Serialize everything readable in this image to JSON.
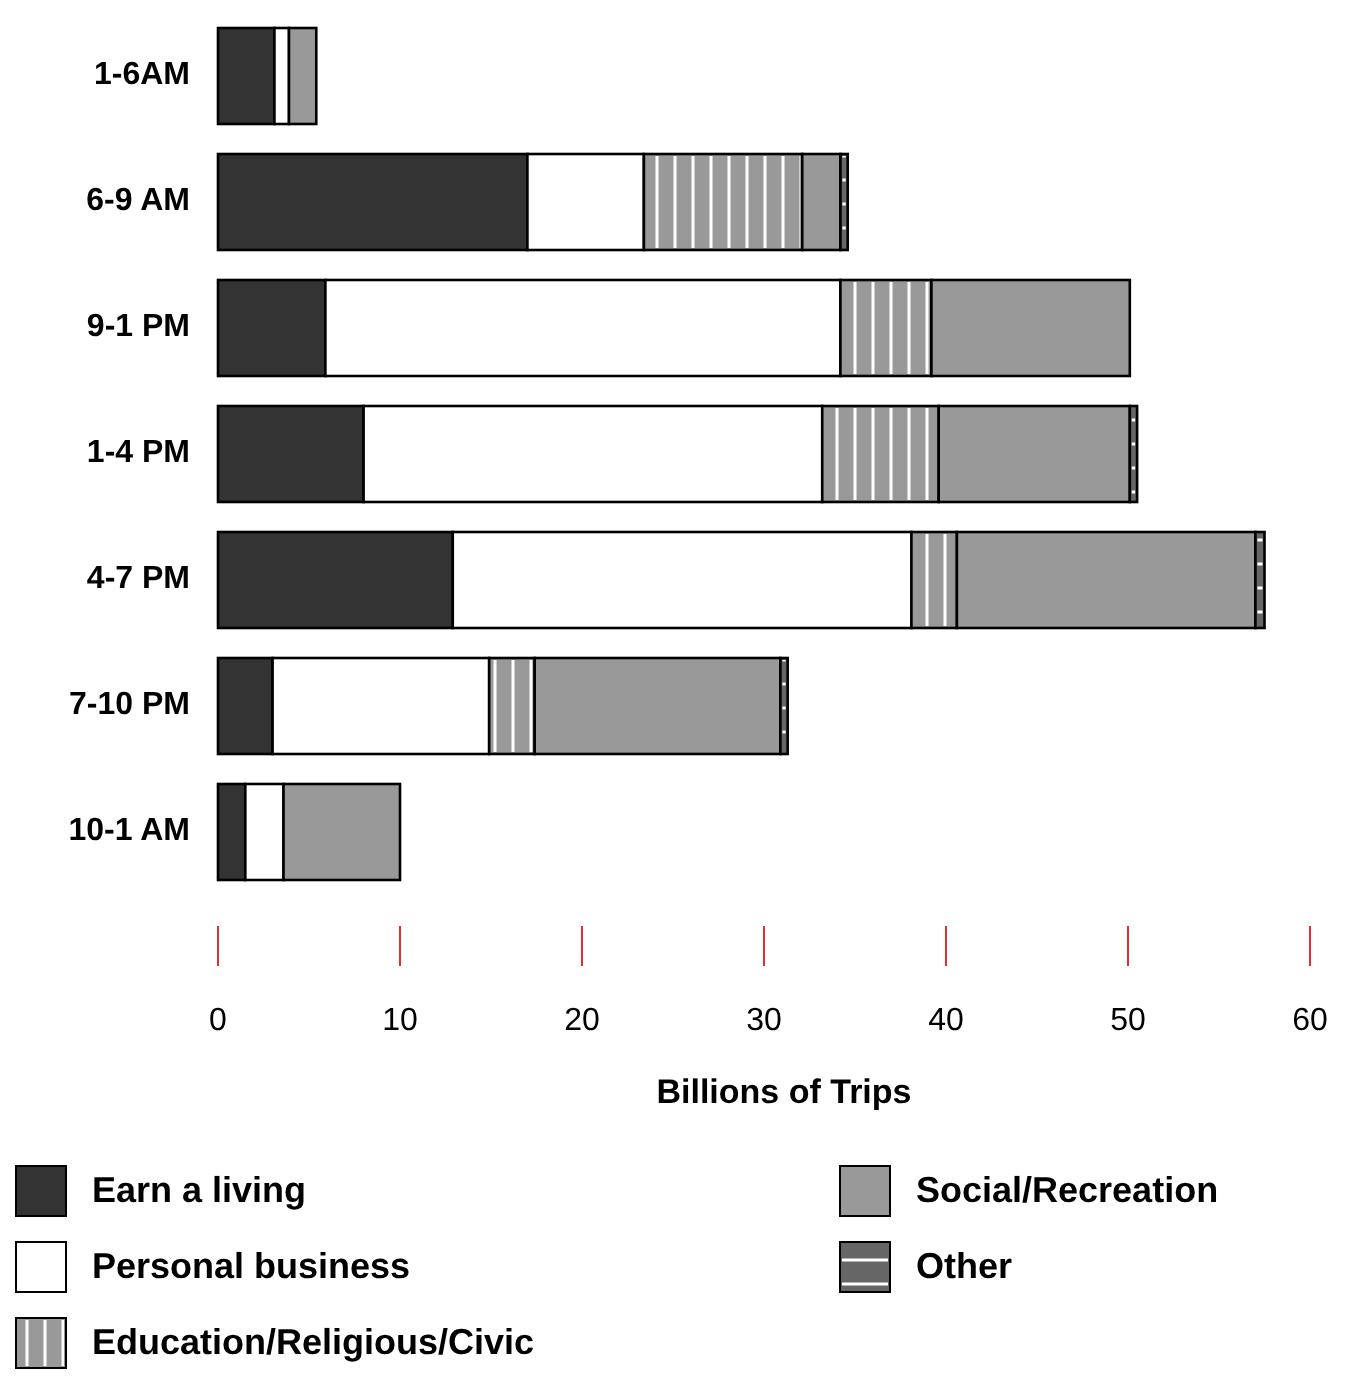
{
  "chart_data": {
    "type": "bar",
    "orientation": "horizontal",
    "stacked": true,
    "xlabel": "Billions of Trips",
    "categories": [
      "1-6AM",
      "6-9 AM",
      "9-1 PM",
      "1-4 PM",
      "4-7 PM",
      "7-10 PM",
      "10-1 AM"
    ],
    "series": [
      {
        "name": "Earn a living",
        "color": "#333333",
        "values": [
          3.1,
          17.0,
          5.9,
          8.0,
          12.9,
          3.0,
          1.5
        ]
      },
      {
        "name": "Personal business",
        "color": "#ffffff",
        "values": [
          0.8,
          6.4,
          28.3,
          25.2,
          25.2,
          11.9,
          2.1
        ]
      },
      {
        "name": "Education/Religious/Civic",
        "color": "#999999",
        "values": [
          0,
          8.7,
          5.0,
          6.4,
          2.5,
          2.5,
          0
        ]
      },
      {
        "name": "Social/Recreation",
        "color": "#999999",
        "values": [
          1.5,
          2.1,
          10.9,
          10.5,
          16.4,
          13.5,
          6.4
        ]
      },
      {
        "name": "Other",
        "color": "#666666",
        "values": [
          0,
          0.4,
          0,
          0.4,
          0.5,
          0.4,
          0
        ]
      }
    ],
    "xlim": [
      0,
      60
    ],
    "xticks": [
      0,
      10,
      20,
      30,
      40,
      50,
      60
    ],
    "grid": false,
    "legend": "bottom"
  }
}
